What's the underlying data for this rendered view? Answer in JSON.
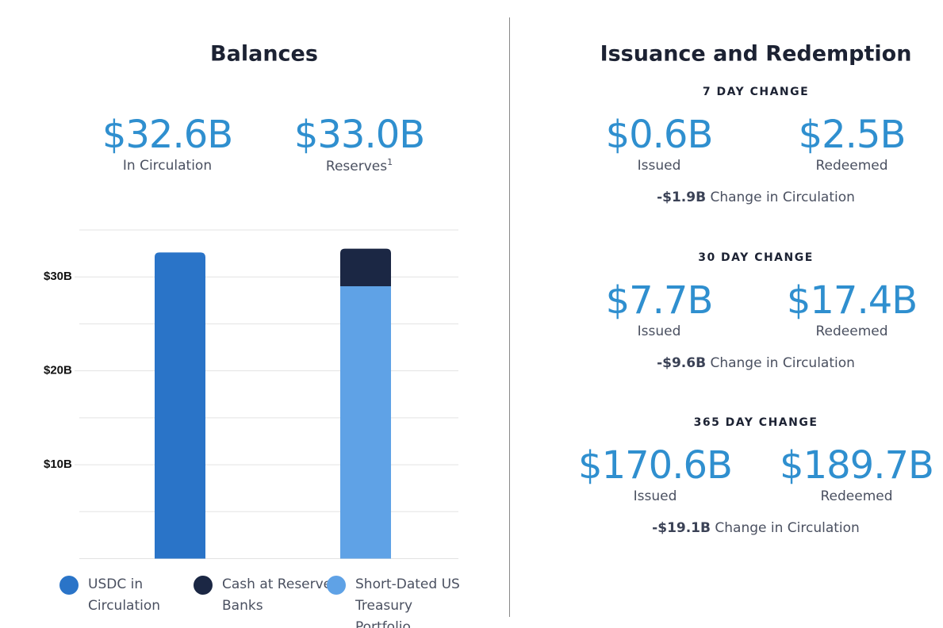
{
  "balances": {
    "title": "Balances",
    "stats": [
      {
        "value": "$32.6B",
        "label": "In Circulation"
      },
      {
        "value": "$33.0B",
        "label": "Reserves",
        "footnote": "1"
      }
    ]
  },
  "chart_data": {
    "type": "bar",
    "stacked": true,
    "categories": [
      null,
      null
    ],
    "series": [
      {
        "name": "USDC in Circulation",
        "color": "#2a74c8",
        "values": [
          32.6,
          null
        ]
      },
      {
        "name": "Short-Dated US Treasury Portfolio",
        "color": "#5fa2e6",
        "values": [
          null,
          29.0
        ]
      },
      {
        "name": "Cash at Reserve Banks",
        "color": "#1b2744",
        "values": [
          null,
          4.0
        ]
      }
    ],
    "legend_order": [
      0,
      2,
      1
    ],
    "ylim": [
      0,
      35
    ],
    "yticks": [
      {
        "value": 10,
        "label": "$10B"
      },
      {
        "value": 20,
        "label": "$20B"
      },
      {
        "value": 30,
        "label": "$30B"
      }
    ],
    "grid_lines": [
      0,
      5,
      10,
      15,
      20,
      25,
      30,
      35
    ]
  },
  "issuance": {
    "title": "Issuance and Redemption",
    "sections": [
      {
        "heading": "7 DAY CHANGE",
        "issued": "$0.6B",
        "issued_label": "Issued",
        "redeemed": "$2.5B",
        "redeemed_label": "Redeemed",
        "change": "-$1.9B",
        "change_label": "Change in Circulation"
      },
      {
        "heading": "30 DAY CHANGE",
        "issued": "$7.7B",
        "issued_label": "Issued",
        "redeemed": "$17.4B",
        "redeemed_label": "Redeemed",
        "change": "-$9.6B",
        "change_label": "Change in Circulation"
      },
      {
        "heading": "365 DAY CHANGE",
        "issued": "$170.6B",
        "issued_label": "Issued",
        "redeemed": "$189.7B",
        "redeemed_label": "Redeemed",
        "change": "-$19.1B",
        "change_label": "Change in Circulation"
      }
    ]
  }
}
